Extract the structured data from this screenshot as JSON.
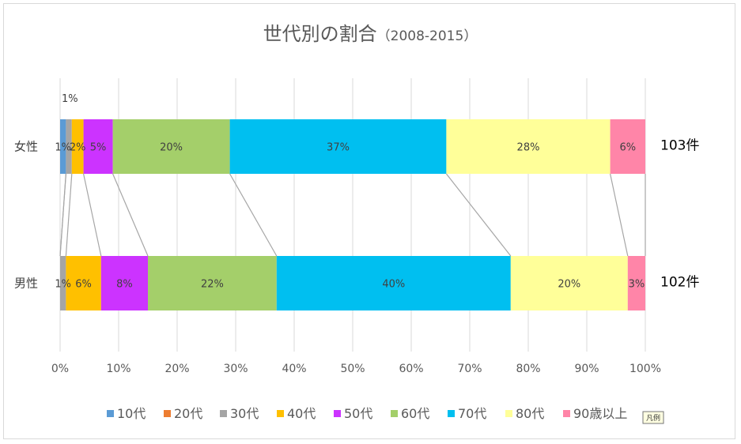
{
  "chart_data": {
    "type": "bar",
    "orientation": "horizontal",
    "stacked": "percent",
    "title": "世代別の割合",
    "subtitle": "（2008-2015）",
    "categories": [
      "女性",
      "男性"
    ],
    "category_counts": [
      "103件",
      "102件"
    ],
    "xticks": [
      "0%",
      "10%",
      "20%",
      "30%",
      "40%",
      "50%",
      "60%",
      "70%",
      "80%",
      "90%",
      "100%"
    ],
    "xlim": [
      0,
      100
    ],
    "grid": true,
    "series_lines": true,
    "legend_position": "bottom",
    "series": [
      {
        "name": "10代",
        "color": "#5b9bd5",
        "values": [
          1,
          0
        ],
        "labels": [
          "1%",
          ""
        ]
      },
      {
        "name": "20代",
        "color": "#ed7d31",
        "values": [
          0,
          0
        ],
        "labels": [
          "",
          ""
        ]
      },
      {
        "name": "30代",
        "color": "#a5a5a5",
        "values": [
          1,
          1
        ],
        "labels": [
          "",
          "1%"
        ]
      },
      {
        "name": "40代",
        "color": "#ffc000",
        "values": [
          2,
          6
        ],
        "labels": [
          "2%",
          "6%"
        ]
      },
      {
        "name": "50代",
        "color": "#cc33ff",
        "values": [
          5,
          8
        ],
        "labels": [
          "5%",
          "8%"
        ]
      },
      {
        "name": "60代",
        "color": "#a4cf6a",
        "values": [
          20,
          22
        ],
        "labels": [
          "20%",
          "22%"
        ]
      },
      {
        "name": "70代",
        "color": "#00bff0",
        "values": [
          37,
          40
        ],
        "labels": [
          "37%",
          "40%"
        ]
      },
      {
        "name": "80代",
        "color": "#ffff99",
        "values": [
          28,
          20
        ],
        "labels": [
          "28%",
          "20%"
        ]
      },
      {
        "name": "90歳以上",
        "color": "#ff85a8",
        "values": [
          6,
          3
        ],
        "labels": [
          "6%",
          "3%"
        ]
      }
    ],
    "annotations": [
      "1%"
    ]
  },
  "tooltip": "凡例"
}
